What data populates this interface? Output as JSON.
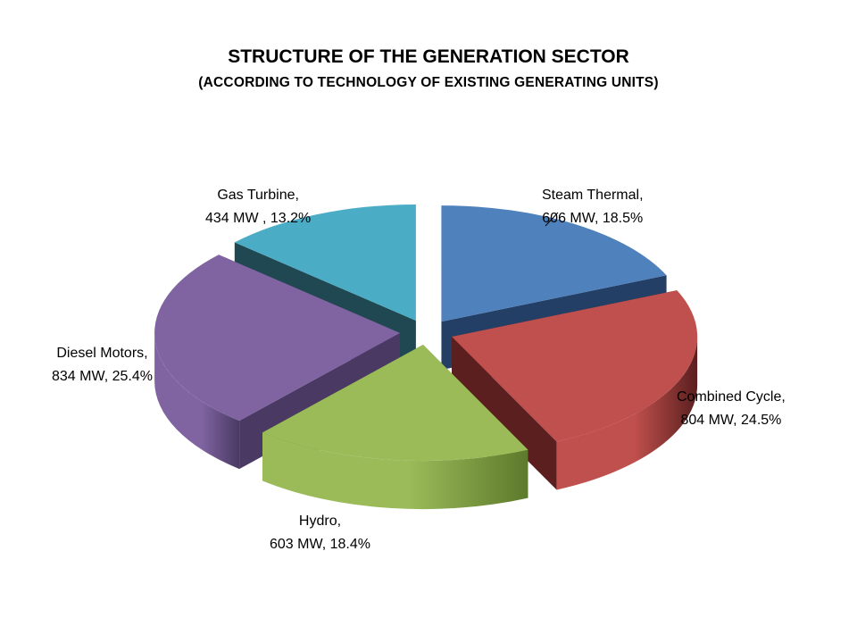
{
  "chart_data": {
    "type": "pie",
    "title": "STRUCTURE OF THE GENERATION SECTOR",
    "subtitle": "(ACCORDING TO TECHNOLOGY OF EXISTING GENERATING UNITS)",
    "unit": "MW",
    "style": "3d-exploded",
    "slices": [
      {
        "name": "Steam Thermal",
        "value": 606,
        "percent": 18.5,
        "label_line1": "Steam Thermal,",
        "label_line2": "606 MW, 18.5%",
        "color": "#4f81bd",
        "side": "#243f66"
      },
      {
        "name": "Combined Cycle",
        "value": 804,
        "percent": 24.5,
        "label_line1": "Combined Cycle,",
        "label_line2": "804 MW, 24.5%",
        "color": "#c0504d",
        "side": "#5a1f1e"
      },
      {
        "name": "Hydro",
        "value": 603,
        "percent": 18.4,
        "label_line1": "Hydro,",
        "label_line2": "603 MW, 18.4%",
        "color": "#9bbb59",
        "side": "#5d7a2c"
      },
      {
        "name": "Diesel Motors",
        "value": 834,
        "percent": 25.4,
        "label_line1": "Diesel Motors,",
        "label_line2": "834 MW, 25.4%",
        "color": "#8064a2",
        "side": "#4a3a63"
      },
      {
        "name": "Gas Turbine",
        "value": 434,
        "percent": 13.2,
        "label_line1": "Gas Turbine,",
        "label_line2": "434 MW , 13.2%",
        "color": "#4bacc6",
        "side": "#1f4852"
      }
    ]
  }
}
